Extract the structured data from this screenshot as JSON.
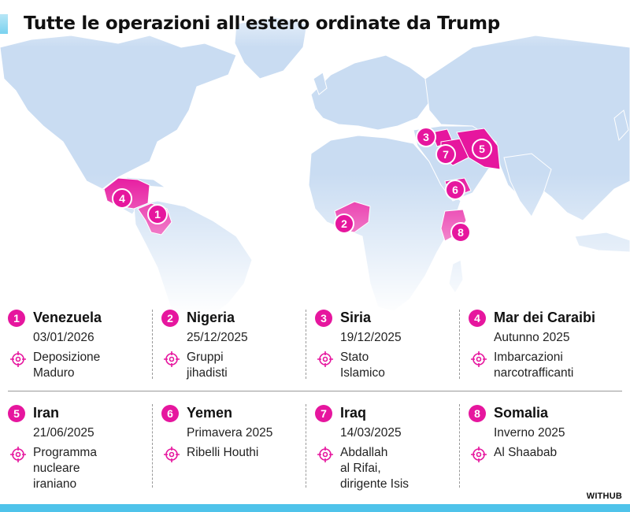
{
  "title": "Tutte le operazioni all'estero ordinate da Trump",
  "credit": "WITHUB",
  "colors": {
    "accent": "#4fc3ea",
    "highlight": "#e6169e",
    "land": "#c9dcf2",
    "ocean": "#ffffff"
  },
  "map": {
    "markers": [
      {
        "number": "1",
        "region": "Venezuela"
      },
      {
        "number": "2",
        "region": "Nigeria"
      },
      {
        "number": "3",
        "region": "Siria"
      },
      {
        "number": "4",
        "region": "Mar dei Caraibi"
      },
      {
        "number": "5",
        "region": "Iran"
      },
      {
        "number": "6",
        "region": "Yemen"
      },
      {
        "number": "7",
        "region": "Iraq"
      },
      {
        "number": "8",
        "region": "Somalia"
      }
    ]
  },
  "operations": [
    {
      "number": "1",
      "country": "Venezuela",
      "date": "03/01/2026",
      "target_lines": [
        "Deposizione",
        "Maduro"
      ],
      "icon": "target-icon"
    },
    {
      "number": "2",
      "country": "Nigeria",
      "date": "25/12/2025",
      "target_lines": [
        "Gruppi",
        "jihadisti"
      ],
      "icon": "target-icon"
    },
    {
      "number": "3",
      "country": "Siria",
      "date": "19/12/2025",
      "target_lines": [
        "Stato",
        "Islamico"
      ],
      "icon": "target-icon"
    },
    {
      "number": "4",
      "country": "Mar dei Caraibi",
      "date": "Autunno 2025",
      "target_lines": [
        "Imbarcazioni",
        "narcotrafficanti"
      ],
      "icon": "target-icon"
    },
    {
      "number": "5",
      "country": "Iran",
      "date": "21/06/2025",
      "target_lines": [
        "Programma",
        "nucleare",
        "iraniano"
      ],
      "icon": "target-icon"
    },
    {
      "number": "6",
      "country": "Yemen",
      "date": "Primavera 2025",
      "target_lines": [
        "Ribelli Houthi"
      ],
      "icon": "target-icon"
    },
    {
      "number": "7",
      "country": "Iraq",
      "date": "14/03/2025",
      "target_lines": [
        "Abdallah",
        "al Rifai,",
        "dirigente Isis"
      ],
      "icon": "target-icon"
    },
    {
      "number": "8",
      "country": "Somalia",
      "date": "Inverno 2025",
      "target_lines": [
        "Al Shaabab"
      ],
      "icon": "target-icon"
    }
  ]
}
